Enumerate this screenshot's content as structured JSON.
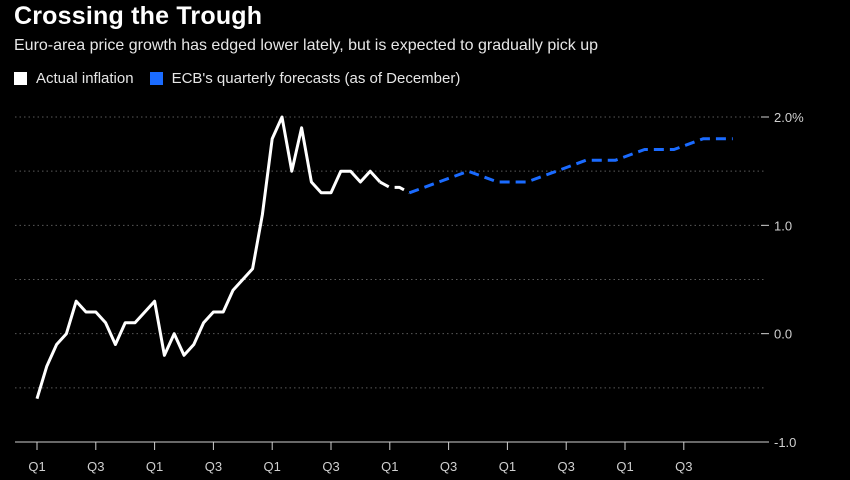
{
  "chart_data": {
    "type": "line",
    "title": "Crossing the Trough",
    "subtitle": "Euro-area price growth has edged lower lately, but is expected to gradually pick up",
    "legend": [
      {
        "label": "Actual inflation",
        "color": "#ffffff"
      },
      {
        "label": "ECB's quarterly forecasts (as of December)",
        "color": "#1a6bff"
      }
    ],
    "x_tick_labels": [
      "Q1",
      "Q3",
      "Q1",
      "Q3",
      "Q1",
      "Q3",
      "Q1",
      "Q3",
      "Q1",
      "Q3",
      "Q1",
      "Q3"
    ],
    "x_tick_index": [
      0,
      6,
      12,
      18,
      24,
      30,
      36,
      42,
      48,
      54,
      60,
      66
    ],
    "y_tick_labels": [
      "2.0%",
      "1.0",
      "0.0",
      "-1.0"
    ],
    "y_tick_values": [
      2.0,
      1.0,
      0.0,
      -1.0
    ],
    "ylim": [
      -1.0,
      2.0
    ],
    "xlim": [
      0,
      71
    ],
    "series": [
      {
        "name": "Actual inflation",
        "color": "#ffffff",
        "style": "solid",
        "x": [
          0,
          1,
          2,
          3,
          4,
          5,
          6,
          7,
          8,
          9,
          10,
          11,
          12,
          13,
          14,
          15,
          16,
          17,
          18,
          19,
          20,
          21,
          22,
          23,
          24,
          25,
          26,
          27,
          28,
          29,
          30,
          31,
          32,
          33,
          34,
          35
        ],
        "values": [
          -0.6,
          -0.3,
          -0.1,
          0.0,
          0.3,
          0.2,
          0.2,
          0.1,
          -0.1,
          0.1,
          0.1,
          0.2,
          0.3,
          -0.2,
          0.0,
          -0.2,
          -0.1,
          0.1,
          0.2,
          0.2,
          0.4,
          0.5,
          0.6,
          1.1,
          1.8,
          2.0,
          1.5,
          1.9,
          1.4,
          1.3,
          1.3,
          1.5,
          1.5,
          1.4,
          1.5,
          1.4
        ]
      },
      {
        "name": "Bridge",
        "color": "#ffffff",
        "style": "dashed",
        "x": [
          35,
          36,
          37,
          38
        ],
        "values": [
          1.4,
          1.35,
          1.35,
          1.3
        ]
      },
      {
        "name": "ECB's quarterly forecasts (as of December)",
        "color": "#1a6bff",
        "style": "dashed",
        "x": [
          38,
          41,
          44,
          47,
          50,
          53,
          56,
          59,
          62,
          65,
          68,
          71
        ],
        "values": [
          1.3,
          1.4,
          1.5,
          1.4,
          1.4,
          1.5,
          1.6,
          1.6,
          1.7,
          1.7,
          1.8,
          1.8
        ]
      }
    ]
  }
}
